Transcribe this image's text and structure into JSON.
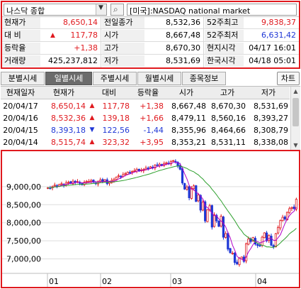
{
  "quote": {
    "market_select": "나스닥 종합",
    "market_name": "[미국]:NASDAQ national market",
    "labels": {
      "current": "현재가",
      "contrast": "대 비",
      "rate": "등락율",
      "volume": "거래량",
      "prev_close": "전일종가",
      "open": "시가",
      "high": "고가",
      "low": "저가",
      "high52": "52주최고",
      "low52": "52주최저",
      "local_time": "현지시각",
      "kr_time": "한국시각"
    },
    "values": {
      "current": "8,650,14",
      "contrast": "117,78",
      "contrast_arrow": "▲",
      "rate": "+1,38",
      "volume": "425,237,812",
      "prev_close": "8,532,36",
      "open": "8,667,48",
      "high": "8,670,30",
      "low": "8,531,69",
      "high52": "9,838,37",
      "low52": "6,631,42",
      "local_time": "04/17 16:01",
      "kr_time": "04/18 05:01"
    }
  },
  "tabs": [
    {
      "label": "분별시세",
      "active": false
    },
    {
      "label": "일별시세",
      "active": true
    },
    {
      "label": "주별시세",
      "active": false
    },
    {
      "label": "월별시세",
      "active": false
    },
    {
      "label": "종목정보",
      "active": false
    }
  ],
  "chart_button": "차트",
  "daily_table": {
    "headers": [
      "현재일자",
      "현재가",
      "대비",
      "등락율",
      "시가",
      "고가",
      "저가"
    ],
    "rows": [
      {
        "date": "20/04/17",
        "price": "8,650,14",
        "arrow": "▲",
        "diff": "117,78",
        "rate": "+1,38",
        "open": "8,667,48",
        "high": "8,670,30",
        "low": "8,531,69",
        "dir": "up"
      },
      {
        "date": "20/04/16",
        "price": "8,532,36",
        "arrow": "▲",
        "diff": "139,18",
        "rate": "+1,66",
        "open": "8,479,11",
        "high": "8,560,16",
        "low": "8,393,27",
        "dir": "up"
      },
      {
        "date": "20/04/15",
        "price": "8,393,18",
        "arrow": "▼",
        "diff": "122,56",
        "rate": "-1,44",
        "open": "8,355,96",
        "high": "8,464,66",
        "low": "8,308,79",
        "dir": "down"
      },
      {
        "date": "20/04/14",
        "price": "8,515,74",
        "arrow": "▲",
        "diff": "323,32",
        "rate": "+3,95",
        "open": "8,353,21",
        "high": "8,531,11",
        "low": "8,338,08",
        "dir": "up"
      }
    ]
  },
  "chart_data": {
    "type": "candlestick",
    "y_ticks": [
      "9,000,00",
      "8,500,00",
      "8,000,00",
      "7,500,00",
      "7,000,00"
    ],
    "y_tick_values": [
      9000,
      8500,
      8000,
      7500,
      7000
    ],
    "x_ticks": [
      "01",
      "02",
      "03",
      "04"
    ],
    "ylim": [
      6600,
      9900
    ],
    "colors": {
      "up": "#e0191e",
      "down": "#1f37d6",
      "ma_short": "#b000c8",
      "ma_long": "#2ea02e",
      "grid": "#dddddd"
    },
    "closes": [
      8970,
      8960,
      9000,
      9040,
      9010,
      9060,
      9080,
      9040,
      9100,
      9120,
      9090,
      9150,
      9110,
      9140,
      9090,
      9050,
      9120,
      9150,
      9140,
      9170,
      9120,
      9080,
      9140,
      9180,
      9150,
      9190,
      9080,
      9130,
      9170,
      9200,
      9260,
      9300,
      9280,
      9330,
      9360,
      9400,
      9390,
      9420,
      9440,
      9480,
      9430,
      9460,
      9480,
      9510,
      9500,
      9550,
      9520,
      9590,
      9600,
      9620,
      9580,
      9640,
      9660,
      9630,
      9690,
      9720,
      9680,
      9580,
      9480,
      9100,
      8930,
      8990,
      8690,
      8950,
      9020,
      8590,
      8770,
      8350,
      8570,
      8050,
      8360,
      8470,
      7880,
      8220,
      8050,
      7900,
      8180,
      7600,
      7700,
      7270,
      7170,
      7160,
      6900,
      6860,
      7010,
      7050,
      6930,
      7420,
      7550,
      7480,
      7590,
      7410,
      7370,
      7360,
      7600,
      7720,
      7500,
      7650,
      7380,
      7330,
      7700,
      7870,
      8060,
      8150,
      8100,
      8290,
      8390,
      8420,
      8390,
      8650
    ]
  }
}
